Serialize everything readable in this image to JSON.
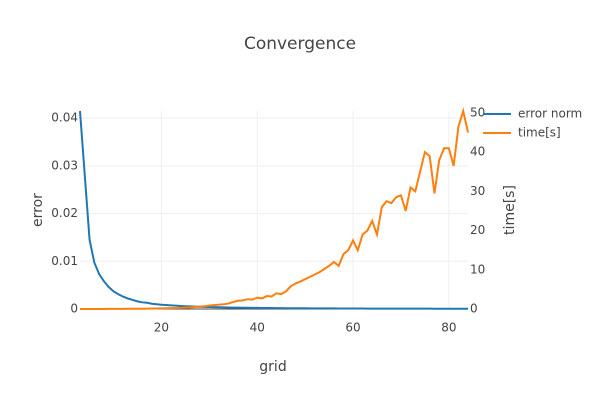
{
  "chart_data": {
    "type": "line",
    "title": "Convergence",
    "xlabel": "grid",
    "ylabel": "error",
    "y2label": "time[s]",
    "x": [
      3,
      4,
      5,
      6,
      7,
      8,
      9,
      10,
      11,
      12,
      13,
      14,
      15,
      16,
      17,
      18,
      19,
      20,
      21,
      22,
      23,
      24,
      25,
      26,
      27,
      28,
      29,
      30,
      31,
      32,
      33,
      34,
      35,
      36,
      37,
      38,
      39,
      40,
      41,
      42,
      43,
      44,
      45,
      46,
      47,
      48,
      49,
      50,
      51,
      52,
      53,
      54,
      55,
      56,
      57,
      58,
      59,
      60,
      61,
      62,
      63,
      64,
      65,
      66,
      67,
      68,
      69,
      70,
      71,
      72,
      73,
      74,
      75,
      76,
      77,
      78,
      79,
      80,
      81,
      82,
      83,
      84
    ],
    "series": [
      {
        "name": "error norm",
        "color": "#1f77b4",
        "values": [
          0.0415,
          0.028,
          0.0145,
          0.0097,
          0.0073,
          0.0058,
          0.0046,
          0.0037,
          0.0031,
          0.0026,
          0.0022,
          0.0019,
          0.0016,
          0.0014,
          0.0013,
          0.0011,
          0.001,
          0.0009,
          0.00084,
          0.00076,
          0.0007,
          0.00064,
          0.00059,
          0.00055,
          0.00051,
          0.00047,
          0.00044,
          0.00041,
          0.00039,
          0.00036,
          0.00034,
          0.00032,
          0.0003,
          0.00029,
          0.00027,
          0.00026,
          0.00024,
          0.00023,
          0.00022,
          0.00021,
          0.0002,
          0.00019,
          0.00018,
          0.00017,
          0.00017,
          0.00016,
          0.00015,
          0.00015,
          0.00014,
          0.00014,
          0.00013,
          0.00013,
          0.00012,
          0.00012,
          0.00011,
          0.00011,
          0.00011,
          0.0001,
          0.0001,
          0.0001,
          9e-05,
          9e-05,
          9e-05,
          8e-05,
          8e-05,
          8e-05,
          8e-05,
          8e-05,
          7e-05,
          7e-05,
          7e-05,
          7e-05,
          7e-05,
          7e-05,
          6e-05,
          6e-05,
          6e-05,
          6e-05,
          6e-05,
          6e-05,
          6e-05,
          6e-05
        ]
      },
      {
        "name": "time[s]",
        "color": "#ff7f0e",
        "axis": "y2",
        "values": [
          0,
          0,
          0,
          0,
          0.01,
          0.01,
          0.02,
          0.02,
          0.03,
          0.04,
          0.05,
          0.06,
          0.07,
          0.08,
          0.1,
          0.12,
          0.14,
          0.16,
          0.19,
          0.22,
          0.26,
          0.3,
          0.35,
          0.4,
          0.5,
          0.6,
          0.7,
          0.85,
          1,
          1.1,
          1.2,
          1.4,
          1.8,
          2.1,
          2.2,
          2.5,
          2.4,
          2.9,
          2.7,
          3.3,
          3.2,
          4,
          3.8,
          4.5,
          5.8,
          6.5,
          7,
          7.6,
          8.2,
          8.8,
          9.4,
          10.2,
          11,
          12,
          11,
          14,
          15,
          17.5,
          15,
          19,
          20,
          22.5,
          19,
          26,
          27.5,
          27,
          28.5,
          29,
          25,
          31,
          30,
          35,
          40,
          39,
          29.5,
          38,
          41,
          41,
          36.5,
          46.5,
          50.5,
          45
        ]
      }
    ],
    "xlim": [
      3,
      84
    ],
    "xticks": [
      20,
      40,
      60,
      80
    ],
    "ylim": [
      0,
      0.0415
    ],
    "yticks": [
      0,
      0.01,
      0.02,
      0.03,
      0.04
    ],
    "y2lim": [
      0,
      50.5
    ],
    "y2ticks": [
      0,
      10,
      20,
      30,
      40,
      50
    ],
    "grid": true,
    "legend": "right"
  }
}
